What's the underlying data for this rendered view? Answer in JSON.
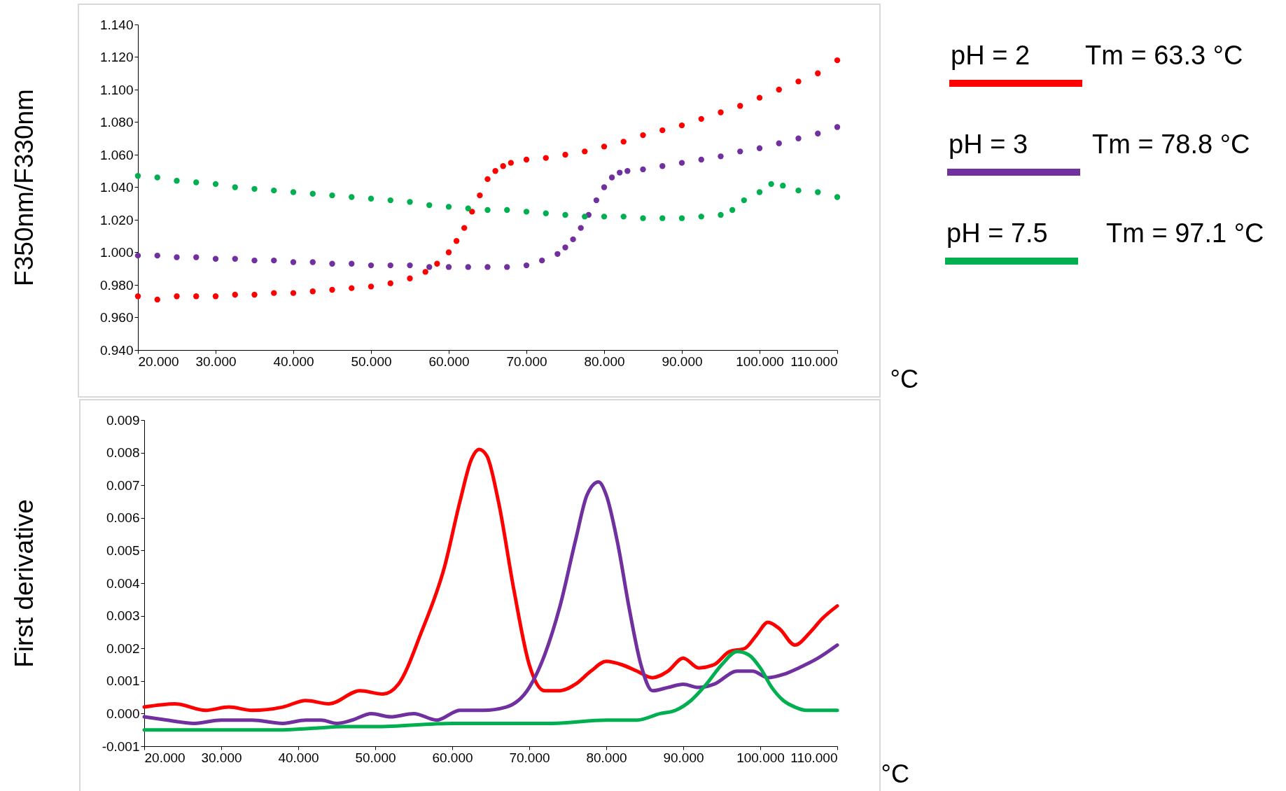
{
  "chart_data": [
    {
      "type": "scatter",
      "ylabel": "F350nm/F330nm",
      "xlabel": "°C",
      "marker": "circle",
      "legend": "right",
      "grid": false,
      "annotations": [
        "Tm = 63.3 °C",
        "Tm = 78.8 °C",
        "Tm = 97.1 °C"
      ],
      "xlim": [
        20,
        110
      ],
      "xticks": [
        {
          "value": 20,
          "label": "20.000"
        },
        {
          "value": 30,
          "label": "30.000"
        },
        {
          "value": 40,
          "label": "40.000"
        },
        {
          "value": 50,
          "label": "50.000"
        },
        {
          "value": 60,
          "label": "60.000"
        },
        {
          "value": 70,
          "label": "70.000"
        },
        {
          "value": 80,
          "label": "80.000"
        },
        {
          "value": 90,
          "label": "90.000"
        },
        {
          "value": 100,
          "label": "100.000"
        },
        {
          "value": 110,
          "label": "110.000"
        }
      ],
      "ylim": [
        0.94,
        1.14
      ],
      "yticks": [
        {
          "value": 0.94,
          "label": "0.940"
        },
        {
          "value": 0.96,
          "label": "0.960"
        },
        {
          "value": 0.98,
          "label": "0.980"
        },
        {
          "value": 1.0,
          "label": "1.000"
        },
        {
          "value": 1.02,
          "label": "1.020"
        },
        {
          "value": 1.04,
          "label": "1.040"
        },
        {
          "value": 1.06,
          "label": "1.060"
        },
        {
          "value": 1.08,
          "label": "1.080"
        },
        {
          "value": 1.1,
          "label": "1.100"
        },
        {
          "value": 1.12,
          "label": "1.120"
        },
        {
          "value": 1.14,
          "label": "1.140"
        }
      ],
      "series": [
        {
          "name": "pH = 2",
          "color": "#ff0000",
          "x": [
            20,
            22.5,
            25,
            27.5,
            30,
            32.5,
            35,
            37.5,
            40,
            42.5,
            45,
            47.5,
            50,
            52.5,
            55,
            57,
            58.5,
            60,
            61,
            62,
            63,
            64,
            65,
            66,
            67,
            68,
            70,
            72.5,
            75,
            77.5,
            80,
            82.5,
            85,
            87.5,
            90,
            92.5,
            95,
            97.5,
            100,
            102.5,
            105,
            107.5,
            110
          ],
          "values": [
            0.973,
            0.971,
            0.973,
            0.973,
            0.973,
            0.974,
            0.974,
            0.975,
            0.975,
            0.976,
            0.977,
            0.978,
            0.979,
            0.981,
            0.984,
            0.988,
            0.993,
            1.0,
            1.007,
            1.015,
            1.025,
            1.035,
            1.045,
            1.05,
            1.053,
            1.055,
            1.057,
            1.058,
            1.06,
            1.062,
            1.065,
            1.068,
            1.072,
            1.075,
            1.078,
            1.082,
            1.086,
            1.09,
            1.095,
            1.1,
            1.105,
            1.11,
            1.118
          ]
        },
        {
          "name": "pH = 3",
          "color": "#7030a0",
          "x": [
            20,
            22.5,
            25,
            27.5,
            30,
            32.5,
            35,
            37.5,
            40,
            42.5,
            45,
            47.5,
            50,
            52.5,
            55,
            57.5,
            60,
            62.5,
            65,
            67.5,
            70,
            72,
            74,
            75,
            76,
            77,
            78,
            79,
            80,
            81,
            82,
            83,
            85,
            87.5,
            90,
            92.5,
            95,
            97.5,
            100,
            102.5,
            105,
            107.5,
            110
          ],
          "values": [
            0.998,
            0.998,
            0.997,
            0.997,
            0.996,
            0.996,
            0.995,
            0.995,
            0.994,
            0.994,
            0.993,
            0.993,
            0.992,
            0.992,
            0.992,
            0.991,
            0.991,
            0.991,
            0.991,
            0.991,
            0.992,
            0.995,
            0.999,
            1.003,
            1.008,
            1.015,
            1.023,
            1.032,
            1.04,
            1.046,
            1.049,
            1.05,
            1.051,
            1.053,
            1.055,
            1.057,
            1.059,
            1.062,
            1.064,
            1.067,
            1.07,
            1.073,
            1.077
          ]
        },
        {
          "name": "pH = 7.5",
          "color": "#00b050",
          "x": [
            20,
            22.5,
            25,
            27.5,
            30,
            32.5,
            35,
            37.5,
            40,
            42.5,
            45,
            47.5,
            50,
            52.5,
            55,
            57.5,
            60,
            62.5,
            65,
            67.5,
            70,
            72.5,
            75,
            77.5,
            80,
            82.5,
            85,
            87.5,
            90,
            92.5,
            95,
            96.5,
            98,
            100,
            101.5,
            103,
            105,
            107.5,
            110
          ],
          "values": [
            1.047,
            1.046,
            1.044,
            1.043,
            1.042,
            1.04,
            1.039,
            1.038,
            1.037,
            1.036,
            1.035,
            1.034,
            1.033,
            1.032,
            1.031,
            1.029,
            1.028,
            1.027,
            1.026,
            1.026,
            1.025,
            1.024,
            1.023,
            1.022,
            1.022,
            1.022,
            1.021,
            1.021,
            1.021,
            1.022,
            1.023,
            1.026,
            1.032,
            1.037,
            1.042,
            1.041,
            1.038,
            1.037,
            1.034
          ]
        }
      ]
    },
    {
      "type": "line",
      "ylabel": "First derivative",
      "xlabel": "°C",
      "line_style": "solid",
      "grid": false,
      "xlim": [
        20,
        110
      ],
      "xticks": [
        {
          "value": 20,
          "label": "20.000"
        },
        {
          "value": 30,
          "label": "30.000"
        },
        {
          "value": 40,
          "label": "40.000"
        },
        {
          "value": 50,
          "label": "50.000"
        },
        {
          "value": 60,
          "label": "60.000"
        },
        {
          "value": 70,
          "label": "70.000"
        },
        {
          "value": 80,
          "label": "80.000"
        },
        {
          "value": 90,
          "label": "90.000"
        },
        {
          "value": 100,
          "label": "100.000"
        },
        {
          "value": 110,
          "label": "110.000"
        }
      ],
      "ylim": [
        -0.001,
        0.009
      ],
      "yticks": [
        -0.001,
        {
          "value": 0,
          "label": "0.000"
        },
        0.001,
        0.002,
        0.003,
        0.004,
        0.005,
        0.006,
        0.007,
        0.008,
        0.009
      ],
      "series": [
        {
          "color": "#ff0000",
          "x": [
            20,
            24,
            28,
            31,
            34,
            38,
            41,
            44,
            48,
            51,
            53,
            56,
            59,
            61,
            62.5,
            63.5,
            64.5,
            66,
            68,
            70,
            72,
            74,
            76,
            78,
            80,
            82,
            84,
            86,
            88,
            90,
            92,
            94,
            96,
            98,
            99.5,
            101,
            102.5,
            104.5,
            106.5,
            108,
            110
          ],
          "values": [
            0.0002,
            0.0003,
            0.0001,
            0.0002,
            0.0001,
            0.0002,
            0.0004,
            0.0003,
            0.0007,
            0.0006,
            0.0009,
            0.0025,
            0.0045,
            0.0065,
            0.0078,
            0.0081,
            0.0079,
            0.0065,
            0.0038,
            0.0015,
            0.0007,
            0.0007,
            0.0009,
            0.0013,
            0.0016,
            0.0015,
            0.0013,
            0.0011,
            0.0013,
            0.0017,
            0.0014,
            0.0015,
            0.0019,
            0.002,
            0.0024,
            0.0028,
            0.0026,
            0.0021,
            0.0025,
            0.0029,
            0.0033
          ]
        },
        {
          "color": "#7030a0",
          "x": [
            20,
            23,
            26.5,
            30,
            34,
            38,
            41,
            43,
            45,
            47,
            49.5,
            52,
            55,
            58,
            61,
            64,
            67,
            70,
            72,
            74,
            76,
            77.5,
            79,
            80,
            81.5,
            83,
            84.5,
            86,
            88,
            90,
            92,
            94,
            97,
            99,
            101,
            103,
            105,
            107.5,
            110
          ],
          "values": [
            -0.0001,
            -0.0002,
            -0.0003,
            -0.0002,
            -0.0002,
            -0.0003,
            -0.0002,
            -0.0002,
            -0.0003,
            -0.0002,
            0.0,
            -0.0001,
            0.0,
            -0.0002,
            0.0001,
            0.0001,
            0.0002,
            0.0008,
            0.0018,
            0.0033,
            0.0053,
            0.0067,
            0.0071,
            0.0067,
            0.0052,
            0.0032,
            0.0015,
            0.0007,
            0.0008,
            0.0009,
            0.0008,
            0.0009,
            0.0013,
            0.0013,
            0.0011,
            0.0012,
            0.0014,
            0.0017,
            0.0021
          ]
        },
        {
          "color": "#00b050",
          "x": [
            20,
            30,
            38,
            42,
            46,
            50,
            60,
            70,
            73,
            80,
            84,
            87,
            89,
            91,
            93,
            95,
            97,
            98.5,
            100,
            101.5,
            103,
            104.5,
            106,
            110
          ],
          "values": [
            -0.0005,
            -0.0005,
            -0.0005,
            -0.00045,
            -0.0004,
            -0.0004,
            -0.0003,
            -0.0003,
            -0.0003,
            -0.0002,
            -0.0002,
            0.0,
            0.0001,
            0.0004,
            0.0009,
            0.0015,
            0.0019,
            0.0018,
            0.0014,
            0.0008,
            0.0004,
            0.0002,
            0.0001,
            0.0001
          ]
        }
      ]
    }
  ]
}
